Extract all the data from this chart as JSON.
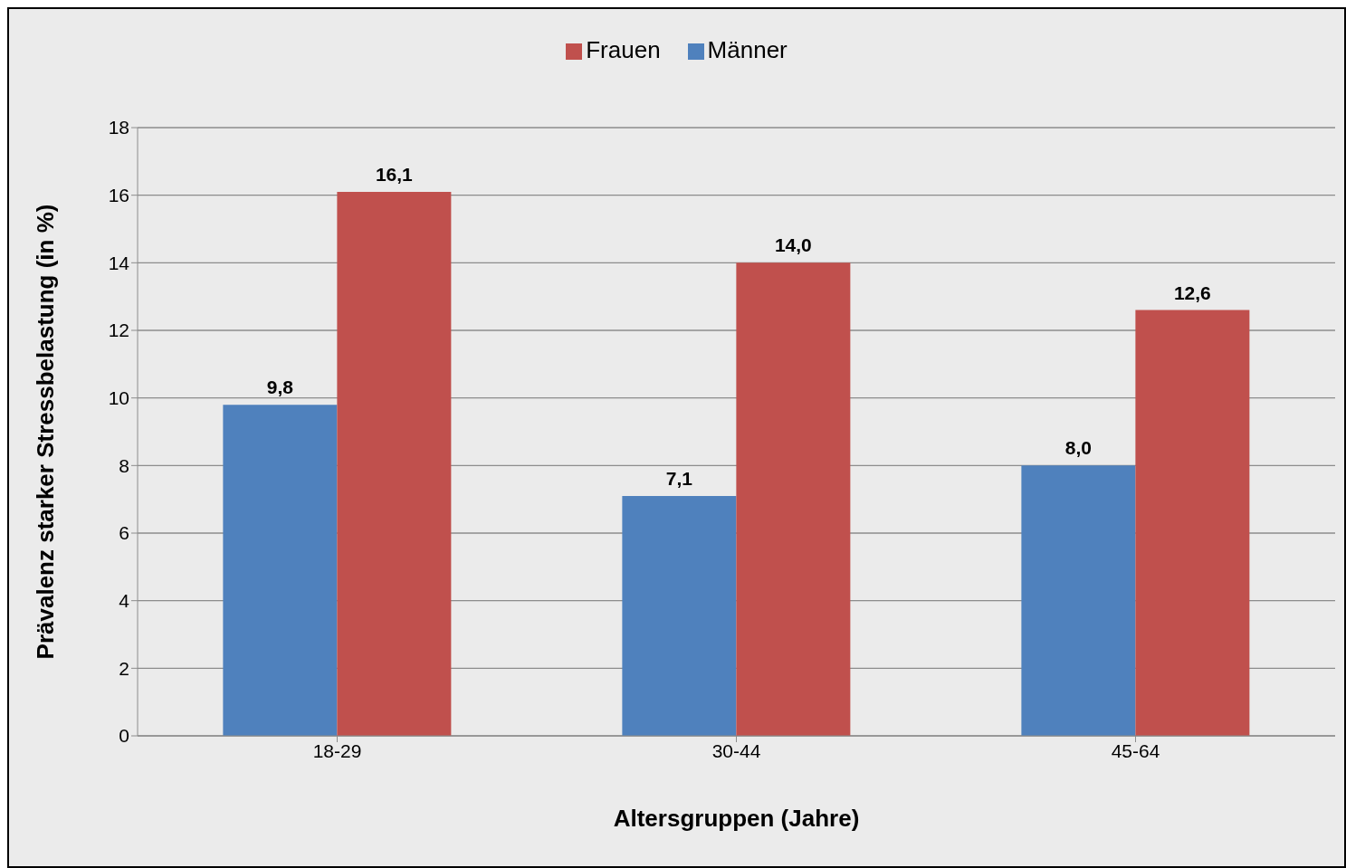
{
  "chart_data": {
    "type": "bar",
    "xlabel": "Altersgruppen (Jahre)",
    "ylabel": "Prävalenz starker Stressbelastung (in %)",
    "categories": [
      "18-29",
      "30-44",
      "45-64"
    ],
    "series": [
      {
        "name": "Männer",
        "color": "#4f81bd",
        "values": [
          9.8,
          7.1,
          8.0
        ],
        "value_labels": [
          "9,8",
          "7,1",
          "8,0"
        ]
      },
      {
        "name": "Frauen",
        "color": "#c0504d",
        "values": [
          16.1,
          14.0,
          12.6
        ],
        "value_labels": [
          "16,1",
          "14,0",
          "12,6"
        ]
      }
    ],
    "ylim": [
      0,
      18
    ],
    "yticks": [
      0,
      2,
      4,
      6,
      8,
      10,
      12,
      14,
      16,
      18
    ],
    "grid": "y",
    "legend": "top"
  }
}
